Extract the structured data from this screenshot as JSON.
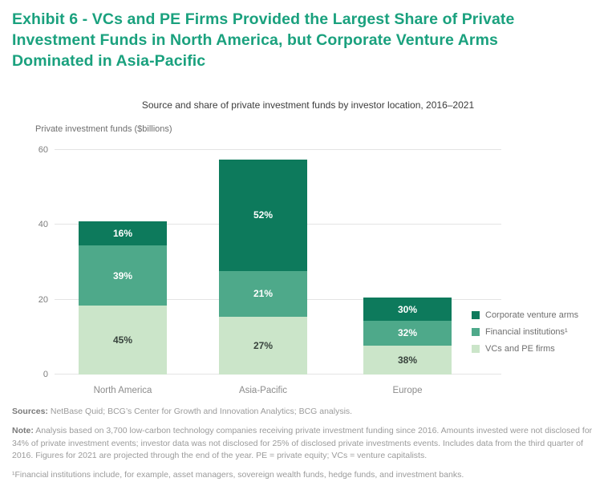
{
  "exhibit_title": "Exhibit 6 - VCs and PE Firms Provided the Largest Share of Private Investment Funds in North America, but Corporate Venture Arms Dominated in Asia-Pacific",
  "colors": {
    "title_green": "#1aa17e",
    "dark_teal": "#0d7a5c",
    "medium_teal": "#4ea98a",
    "light_green": "#cbe5c9",
    "gridline": "#e4e4e4"
  },
  "chart_data": {
    "type": "bar",
    "stacked": true,
    "title": "Source and share of private investment funds by investor location, 2016–2021",
    "ylabel": "Private investment funds ($billions)",
    "xlabel": "",
    "unit": "$billions",
    "ylim": [
      0,
      60
    ],
    "yticks": [
      0,
      20,
      40,
      60
    ],
    "grid": true,
    "legend_position": "right",
    "categories": [
      "North America",
      "Asia-Pacific",
      "Europe"
    ],
    "totals": [
      41,
      57.5,
      20.5
    ],
    "series": [
      {
        "name": "VCs and PE firms",
        "color": "#cbe5c9",
        "label_color": "#37423c",
        "pct": [
          45,
          27,
          38
        ],
        "values": [
          18.5,
          15.5,
          7.8
        ]
      },
      {
        "name": "Financial institutions¹",
        "color": "#4ea98a",
        "label_color": "#ffffff",
        "pct": [
          39,
          21,
          32
        ],
        "values": [
          16.0,
          12.1,
          6.6
        ]
      },
      {
        "name": "Corporate venture arms",
        "color": "#0d7a5c",
        "label_color": "#ffffff",
        "pct": [
          16,
          52,
          30
        ],
        "values": [
          6.6,
          29.9,
          6.2
        ]
      }
    ]
  },
  "footer": {
    "sources_label": "Sources:",
    "sources_text": "NetBase Quid; BCG’s Center for Growth and Innovation Analytics; BCG analysis.",
    "note_label": "Note:",
    "note_text": "Analysis based on 3,700 low-carbon technology companies receiving private investment funding since 2016. Amounts invested were not disclosed for 34% of private investment events; investor data was not disclosed for 25% of disclosed private investments events. Includes data from the third quarter of 2016. Figures for 2021 are projected through the end of the year. PE = private equity; VCs = venture capitalists.",
    "footnote": "¹Financial institutions include, for example, asset managers, sovereign wealth funds, hedge funds, and investment banks."
  }
}
